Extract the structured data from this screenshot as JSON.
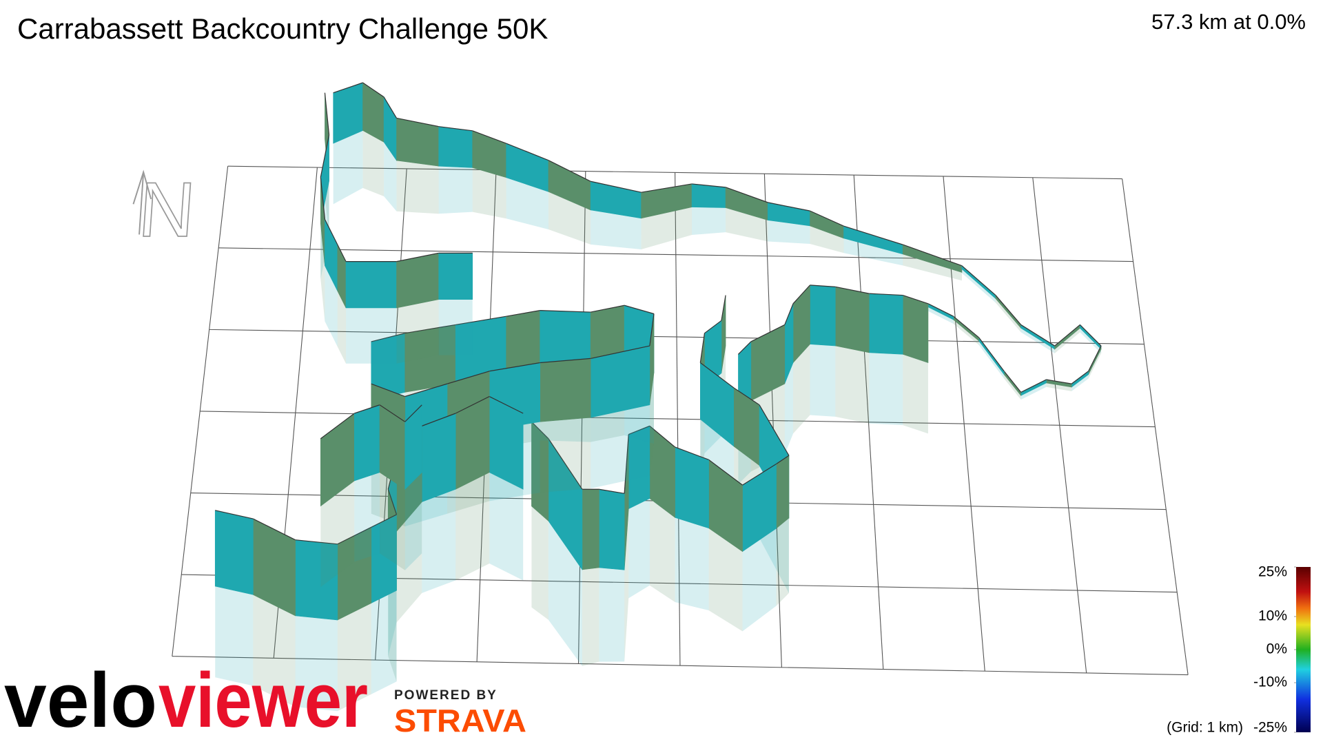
{
  "header": {
    "title": "Carrabassett Backcountry Challenge 50K",
    "status": "57.3 km at 0.0%"
  },
  "compass": {
    "label": "N"
  },
  "legend": {
    "lim": [
      -25,
      25
    ],
    "ticks": [
      {
        "value": 25,
        "label": "25%"
      },
      {
        "value": 10,
        "label": "10%"
      },
      {
        "value": 0,
        "label": "0%"
      },
      {
        "value": -10,
        "label": "-10%"
      },
      {
        "value": -25,
        "label": "-25%"
      }
    ],
    "grid_note": "(Grid: 1 km)"
  },
  "branding": {
    "logo_part1": "velo",
    "logo_part2": "viewer",
    "powered_by": "POWERED BY",
    "strava": "STRAVA"
  }
}
